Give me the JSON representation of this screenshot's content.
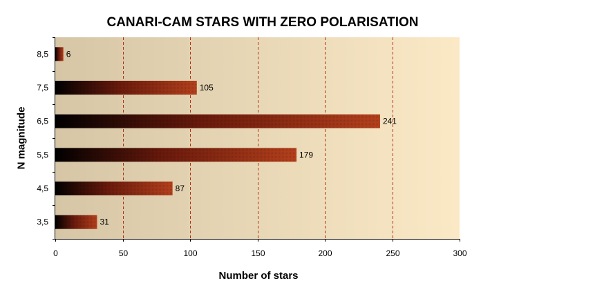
{
  "chart_data": {
    "type": "bar",
    "orientation": "horizontal",
    "title": "CANARI-CAM STARS WITH ZERO POLARISATION",
    "xlabel": "Number of stars",
    "ylabel": "N magnitude",
    "categories": [
      "3,5",
      "4,5",
      "5,5",
      "6,5",
      "7,5",
      "8,5"
    ],
    "values": [
      31,
      87,
      179,
      241,
      105,
      6
    ],
    "xlim": [
      0,
      300
    ],
    "xticks": [
      0,
      50,
      100,
      150,
      200,
      250,
      300
    ],
    "grid": "vertical dashed",
    "data_labels": true,
    "colors": {
      "bar_dark": "#000000",
      "bar_mid": "#6a1a0c",
      "bar_light": "#b4401c",
      "grid": "#b03010",
      "plot_bg_left": "#d6c6a6",
      "plot_bg_right": "#fbe9c6"
    }
  }
}
